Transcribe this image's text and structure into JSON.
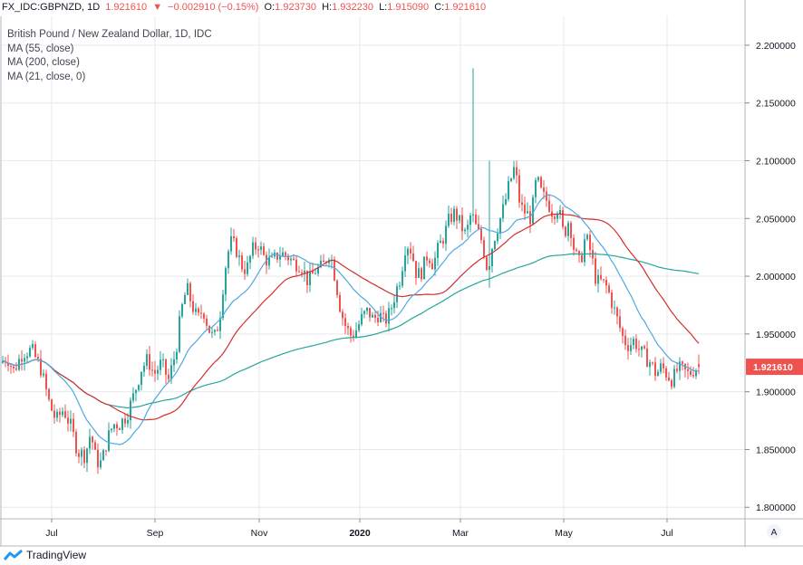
{
  "header": {
    "symbol": "FX_IDC:GBPNZD, 1D",
    "last": "1.921610",
    "arrow": "▼",
    "change": "−0.002910 (−0.15%)",
    "o_label": "O:",
    "o_value": "1.923730",
    "h_label": "H:",
    "h_value": "1.932230",
    "l_label": "L:",
    "l_value": "1.915090",
    "c_label": "C:",
    "c_value": "1.921610"
  },
  "legend": {
    "title": "British Pound / New Zealand Dollar, 1D, IDC",
    "ma55": "MA (55, close)",
    "ma200": "MA (200, close)",
    "ma21": "MA (21, close, 0)"
  },
  "brand": {
    "name": "TradingView"
  },
  "axis_corner": "A",
  "chart_data": {
    "type": "candlestick",
    "title": "British Pound / New Zealand Dollar, 1D, IDC",
    "x_tick_labels": [
      "Jul",
      "Sep",
      "Nov",
      "2020",
      "Mar",
      "May",
      "Jul"
    ],
    "y_tick_labels": [
      "2.200000",
      "2.150000",
      "2.100000",
      "2.050000",
      "2.000000",
      "1.950000",
      "1.900000",
      "1.850000",
      "1.800000"
    ],
    "ylim": [
      1.79,
      2.225
    ],
    "last_price_label": "1.921610",
    "colors": {
      "up": "#26a69a",
      "down": "#ef5350",
      "ma55": "#4fa8e0",
      "ma200": "#26a69a",
      "ma21": "#d32f2f",
      "price_tag": "#ef5350"
    },
    "series_close": [
      {
        "x": 0,
        "y": 1.925
      },
      {
        "x": 8,
        "y": 1.93
      },
      {
        "x": 15,
        "y": 1.918
      },
      {
        "x": 25,
        "y": 1.934
      },
      {
        "x": 35,
        "y": 1.936
      },
      {
        "x": 45,
        "y": 1.92
      },
      {
        "x": 55,
        "y": 1.888
      },
      {
        "x": 62,
        "y": 1.875
      },
      {
        "x": 70,
        "y": 1.885
      },
      {
        "x": 78,
        "y": 1.87
      },
      {
        "x": 86,
        "y": 1.848
      },
      {
        "x": 94,
        "y": 1.845
      },
      {
        "x": 100,
        "y": 1.865
      },
      {
        "x": 106,
        "y": 1.84
      },
      {
        "x": 112,
        "y": 1.838
      },
      {
        "x": 118,
        "y": 1.858
      },
      {
        "x": 125,
        "y": 1.872
      },
      {
        "x": 132,
        "y": 1.872
      },
      {
        "x": 140,
        "y": 1.88
      },
      {
        "x": 148,
        "y": 1.898
      },
      {
        "x": 156,
        "y": 1.92
      },
      {
        "x": 163,
        "y": 1.928
      },
      {
        "x": 170,
        "y": 1.915
      },
      {
        "x": 178,
        "y": 1.925
      },
      {
        "x": 186,
        "y": 1.91
      },
      {
        "x": 194,
        "y": 1.935
      },
      {
        "x": 200,
        "y": 1.97
      },
      {
        "x": 206,
        "y": 1.99
      },
      {
        "x": 212,
        "y": 1.975
      },
      {
        "x": 218,
        "y": 1.962
      },
      {
        "x": 224,
        "y": 1.972
      },
      {
        "x": 230,
        "y": 1.955
      },
      {
        "x": 236,
        "y": 1.945
      },
      {
        "x": 242,
        "y": 1.962
      },
      {
        "x": 248,
        "y": 2.005
      },
      {
        "x": 254,
        "y": 2.03
      },
      {
        "x": 260,
        "y": 2.025
      },
      {
        "x": 266,
        "y": 2.01
      },
      {
        "x": 272,
        "y": 2.005
      },
      {
        "x": 278,
        "y": 2.022
      },
      {
        "x": 285,
        "y": 2.028
      },
      {
        "x": 292,
        "y": 2.015
      },
      {
        "x": 300,
        "y": 2.012
      },
      {
        "x": 308,
        "y": 2.02
      },
      {
        "x": 316,
        "y": 2.018
      },
      {
        "x": 324,
        "y": 2.012
      },
      {
        "x": 332,
        "y": 2.01
      },
      {
        "x": 340,
        "y": 1.995
      },
      {
        "x": 348,
        "y": 2.005
      },
      {
        "x": 356,
        "y": 2.008
      },
      {
        "x": 364,
        "y": 2.022
      },
      {
        "x": 370,
        "y": 1.998
      },
      {
        "x": 376,
        "y": 1.97
      },
      {
        "x": 382,
        "y": 1.955
      },
      {
        "x": 388,
        "y": 1.948
      },
      {
        "x": 394,
        "y": 1.955
      },
      {
        "x": 400,
        "y": 1.965
      },
      {
        "x": 406,
        "y": 1.97
      },
      {
        "x": 412,
        "y": 1.962
      },
      {
        "x": 418,
        "y": 1.968
      },
      {
        "x": 424,
        "y": 1.96
      },
      {
        "x": 430,
        "y": 1.968
      },
      {
        "x": 436,
        "y": 1.985
      },
      {
        "x": 442,
        "y": 2.0
      },
      {
        "x": 448,
        "y": 2.03
      },
      {
        "x": 454,
        "y": 2.022
      },
      {
        "x": 460,
        "y": 2.0
      },
      {
        "x": 466,
        "y": 2.005
      },
      {
        "x": 472,
        "y": 2.02
      },
      {
        "x": 478,
        "y": 2.01
      },
      {
        "x": 484,
        "y": 2.025
      },
      {
        "x": 490,
        "y": 2.035
      },
      {
        "x": 496,
        "y": 2.05
      },
      {
        "x": 502,
        "y": 2.055
      },
      {
        "x": 508,
        "y": 2.045
      },
      {
        "x": 514,
        "y": 2.035
      },
      {
        "x": 520,
        "y": 2.055
      },
      {
        "x": 526,
        "y": 2.04
      },
      {
        "x": 532,
        "y": 2.03
      },
      {
        "x": 538,
        "y": 2.005
      },
      {
        "x": 544,
        "y": 2.03
      },
      {
        "x": 550,
        "y": 2.045
      },
      {
        "x": 556,
        "y": 2.06
      },
      {
        "x": 562,
        "y": 2.08
      },
      {
        "x": 568,
        "y": 2.095
      },
      {
        "x": 574,
        "y": 2.06
      },
      {
        "x": 580,
        "y": 2.055
      },
      {
        "x": 586,
        "y": 2.05
      },
      {
        "x": 592,
        "y": 2.085
      },
      {
        "x": 598,
        "y": 2.07
      },
      {
        "x": 604,
        "y": 2.065
      },
      {
        "x": 610,
        "y": 2.055
      },
      {
        "x": 616,
        "y": 2.06
      },
      {
        "x": 622,
        "y": 2.035
      },
      {
        "x": 628,
        "y": 2.05
      },
      {
        "x": 634,
        "y": 2.02
      },
      {
        "x": 640,
        "y": 2.01
      },
      {
        "x": 646,
        "y": 2.035
      },
      {
        "x": 652,
        "y": 2.02
      },
      {
        "x": 658,
        "y": 1.995
      },
      {
        "x": 664,
        "y": 1.995
      },
      {
        "x": 670,
        "y": 1.99
      },
      {
        "x": 676,
        "y": 1.975
      },
      {
        "x": 682,
        "y": 1.96
      },
      {
        "x": 688,
        "y": 1.945
      },
      {
        "x": 694,
        "y": 1.94
      },
      {
        "x": 700,
        "y": 1.945
      },
      {
        "x": 706,
        "y": 1.935
      },
      {
        "x": 712,
        "y": 1.93
      },
      {
        "x": 718,
        "y": 1.925
      },
      {
        "x": 724,
        "y": 1.915
      },
      {
        "x": 730,
        "y": 1.922
      },
      {
        "x": 736,
        "y": 1.915
      },
      {
        "x": 742,
        "y": 1.91
      },
      {
        "x": 748,
        "y": 1.92
      },
      {
        "x": 754,
        "y": 1.918
      },
      {
        "x": 760,
        "y": 1.915
      },
      {
        "x": 766,
        "y": 1.92
      },
      {
        "x": 771,
        "y": 1.9216
      }
    ]
  }
}
